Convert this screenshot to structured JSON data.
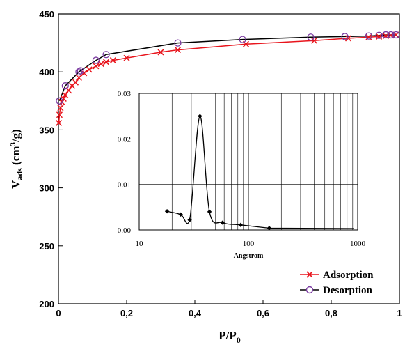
{
  "chart_data": [
    {
      "type": "line",
      "xlabel": "P/P",
      "xlabel_sub": "0",
      "ylabel": "V",
      "ylabel_sub": "ads",
      "ylabel_unit_pre": " (cm",
      "ylabel_unit_sup": "3",
      "ylabel_unit_post": "/g)",
      "xlim": [
        0,
        1
      ],
      "ylim": [
        200,
        450
      ],
      "x_ticks": [
        0,
        0.2,
        0.4,
        0.6,
        0.8,
        1
      ],
      "x_tick_labels": [
        "0",
        "0,2",
        "0,4",
        "0,6",
        "0,8",
        "1"
      ],
      "y_ticks": [
        200,
        250,
        300,
        350,
        400,
        450
      ],
      "y_tick_labels": [
        "200",
        "250",
        "300",
        "350",
        "400",
        "450"
      ],
      "legend_position": "bottom-right",
      "series": [
        {
          "name": "Adsorption",
          "color": "#e8141c",
          "marker": "x",
          "x": [
            0.001,
            0.003,
            0.006,
            0.01,
            0.015,
            0.02,
            0.03,
            0.04,
            0.05,
            0.06,
            0.075,
            0.09,
            0.11,
            0.125,
            0.14,
            0.16,
            0.2,
            0.3,
            0.35,
            0.55,
            0.75,
            0.85,
            0.91,
            0.94,
            0.96,
            0.975,
            0.99
          ],
          "y": [
            356,
            363,
            369,
            374,
            377,
            380,
            384,
            388,
            391,
            395,
            399,
            402,
            405,
            407,
            408.5,
            410,
            412,
            417,
            419,
            424,
            427,
            429,
            430,
            430.5,
            431,
            431.5,
            432
          ]
        },
        {
          "name": "Desorption",
          "color": "#7a3aa0",
          "marker": "o",
          "x": [
            0.99,
            0.975,
            0.96,
            0.94,
            0.91,
            0.84,
            0.74,
            0.54,
            0.35,
            0.14,
            0.11,
            0.065,
            0.06,
            0.02,
            0.003
          ],
          "y": [
            432,
            432,
            432,
            431.5,
            431,
            430.5,
            430,
            428,
            425,
            415,
            410,
            401,
            400,
            388,
            375
          ]
        }
      ]
    },
    {
      "type": "line",
      "xlabel": "Angstrom",
      "x_scale": "log",
      "xlim": [
        10,
        1000
      ],
      "ylim": [
        0,
        0.03
      ],
      "x_ticks": [
        10,
        100,
        1000
      ],
      "x_tick_labels": [
        "10",
        "100",
        "1000"
      ],
      "y_ticks": [
        0,
        0.01,
        0.02,
        0.03
      ],
      "y_tick_labels": [
        "0.00",
        "0.01",
        "0.02",
        "0.03"
      ],
      "grid": true,
      "series": [
        {
          "color": "#000000",
          "marker": "diamond",
          "x": [
            18,
            24,
            29,
            36,
            44,
            58,
            85,
            155
          ],
          "y": [
            0.0041,
            0.0034,
            0.0022,
            0.025,
            0.004,
            0.0016,
            0.0011,
            0.0004
          ]
        }
      ]
    }
  ]
}
